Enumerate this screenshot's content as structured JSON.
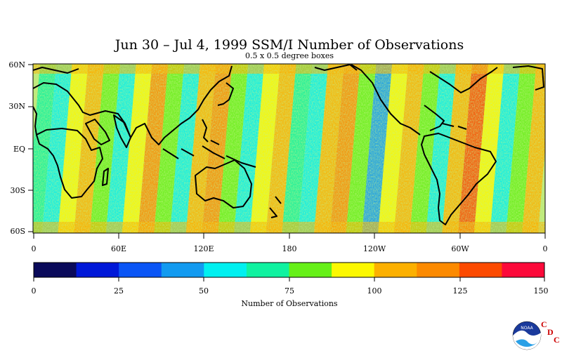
{
  "title": "Jun 30 – Jul 4, 1999 SSM/I Number of Observations",
  "subtitle": "0.5 x 0.5 degree boxes",
  "map": {
    "lat_labels": [
      "60N",
      "30N",
      "EQ",
      "30S",
      "60S"
    ],
    "lon_labels": [
      "0",
      "60E",
      "120E",
      "180",
      "120W",
      "60W",
      "0"
    ]
  },
  "colorbar": {
    "colors": [
      "#0a0a5a",
      "#0018d8",
      "#0a55f5",
      "#129af0",
      "#00f0f0",
      "#10f2a0",
      "#66f018",
      "#fcf800",
      "#fcb000",
      "#fc8a00",
      "#fc4a00",
      "#fc0a3a"
    ],
    "ticks": [
      "0",
      "25",
      "50",
      "75",
      "100",
      "125",
      "150"
    ],
    "label": "Number of Observations",
    "range": [
      0,
      150
    ]
  },
  "logo": {
    "emblem_text": "NOAA",
    "letters": [
      "C",
      "D",
      "C"
    ]
  }
}
